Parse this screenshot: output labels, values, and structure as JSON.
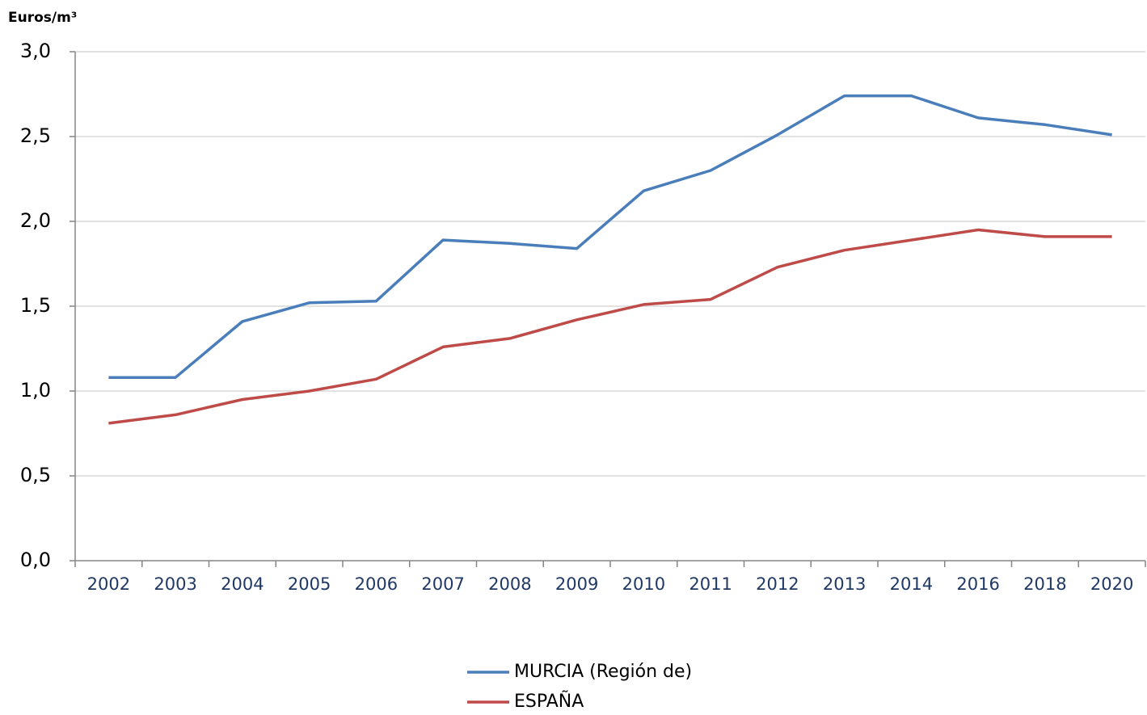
{
  "chart_data": {
    "type": "line",
    "y_label": "Euros/m³",
    "categories": [
      "2002",
      "2003",
      "2004",
      "2005",
      "2006",
      "2007",
      "2008",
      "2009",
      "2010",
      "2011",
      "2012",
      "2013",
      "2014",
      "2016",
      "2018",
      "2020"
    ],
    "series": [
      {
        "name": "MURCIA (Región de)",
        "color": "#4a7ebb",
        "values": [
          1.08,
          1.08,
          1.41,
          1.52,
          1.53,
          1.89,
          1.87,
          1.84,
          2.18,
          2.3,
          2.51,
          2.74,
          2.74,
          2.61,
          2.57,
          2.51
        ]
      },
      {
        "name": "ESPAÑA",
        "color": "#be4b48",
        "values": [
          0.81,
          0.86,
          0.95,
          1.0,
          1.07,
          1.26,
          1.31,
          1.42,
          1.51,
          1.54,
          1.73,
          1.83,
          1.89,
          1.95,
          1.91,
          1.91
        ]
      }
    ],
    "ylim": [
      0,
      3
    ],
    "yticks": [
      {
        "value": 0,
        "label": "0,0"
      },
      {
        "value": 0.5,
        "label": "0,5"
      },
      {
        "value": 1,
        "label": "1,0"
      },
      {
        "value": 1.5,
        "label": "1,5"
      },
      {
        "value": 2,
        "label": "2,0"
      },
      {
        "value": 2.5,
        "label": "2,5"
      },
      {
        "value": 3,
        "label": "3,0"
      }
    ],
    "grid": true,
    "legend": "bottom"
  }
}
